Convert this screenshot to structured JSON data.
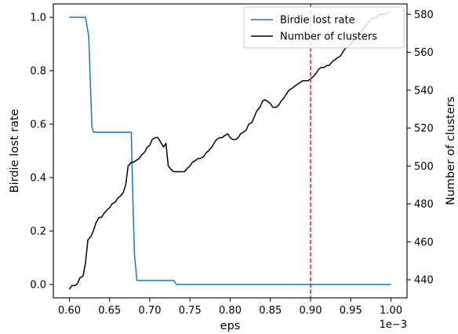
{
  "chart_data": {
    "type": "line",
    "xlabel": "eps",
    "x_offset_label": "1e−3",
    "ylabel_left": "Birdie lost rate",
    "ylabel_right": "Number of clusters",
    "xlim": [
      0.58,
      1.02
    ],
    "ylim_left": [
      -0.05,
      1.05
    ],
    "ylim_right": [
      430.5,
      585.5
    ],
    "xticks": [
      0.6,
      0.65,
      0.7,
      0.75,
      0.8,
      0.85,
      0.9,
      0.95,
      1.0
    ],
    "xtick_labels": [
      "0.60",
      "0.65",
      "0.70",
      "0.75",
      "0.80",
      "0.85",
      "0.90",
      "0.95",
      "1.00"
    ],
    "yticks_left": [
      0.0,
      0.2,
      0.4,
      0.6,
      0.8,
      1.0
    ],
    "ytick_labels_left": [
      "0.0",
      "0.2",
      "0.4",
      "0.6",
      "0.8",
      "1.0"
    ],
    "yticks_right": [
      440,
      460,
      480,
      500,
      520,
      540,
      560,
      580
    ],
    "ytick_labels_right": [
      "440",
      "460",
      "480",
      "500",
      "520",
      "540",
      "560",
      "580"
    ],
    "legend_position": "top-right",
    "vline": {
      "x": 0.9,
      "color": "#d62728",
      "style": "dashed"
    },
    "series": [
      {
        "name": "Birdie lost rate",
        "axis": "left",
        "color": "#1f77b4",
        "x": [
          0.6,
          0.605,
          0.61,
          0.615,
          0.62,
          0.624,
          0.628,
          0.63,
          0.64,
          0.65,
          0.66,
          0.67,
          0.677,
          0.679,
          0.681,
          0.684,
          0.69,
          0.7,
          0.71,
          0.72,
          0.73,
          0.733,
          0.74,
          0.76,
          0.8,
          0.85,
          0.9,
          0.95,
          1.0
        ],
        "y": [
          1.0,
          1.0,
          1.0,
          1.0,
          1.0,
          0.93,
          0.59,
          0.57,
          0.57,
          0.57,
          0.57,
          0.57,
          0.57,
          0.31,
          0.11,
          0.015,
          0.015,
          0.015,
          0.015,
          0.015,
          0.015,
          0.0,
          0.0,
          0.0,
          0.0,
          0.0,
          0.0,
          0.0,
          0.0
        ]
      },
      {
        "name": "Number of clusters",
        "axis": "right",
        "color": "#000000",
        "x": [
          0.6,
          0.603,
          0.607,
          0.61,
          0.613,
          0.617,
          0.62,
          0.623,
          0.627,
          0.63,
          0.633,
          0.637,
          0.64,
          0.643,
          0.647,
          0.65,
          0.653,
          0.657,
          0.66,
          0.663,
          0.667,
          0.67,
          0.673,
          0.677,
          0.68,
          0.683,
          0.687,
          0.69,
          0.693,
          0.697,
          0.7,
          0.703,
          0.707,
          0.71,
          0.713,
          0.717,
          0.72,
          0.723,
          0.727,
          0.73,
          0.733,
          0.737,
          0.74,
          0.743,
          0.747,
          0.75,
          0.753,
          0.757,
          0.76,
          0.763,
          0.767,
          0.77,
          0.773,
          0.777,
          0.78,
          0.783,
          0.787,
          0.79,
          0.793,
          0.797,
          0.8,
          0.803,
          0.807,
          0.81,
          0.813,
          0.817,
          0.82,
          0.823,
          0.827,
          0.83,
          0.833,
          0.837,
          0.84,
          0.843,
          0.847,
          0.85,
          0.853,
          0.857,
          0.86,
          0.863,
          0.867,
          0.87,
          0.873,
          0.877,
          0.88,
          0.883,
          0.887,
          0.89,
          0.893,
          0.897,
          0.9,
          0.903,
          0.907,
          0.91,
          0.913,
          0.917,
          0.92,
          0.923,
          0.927,
          0.93,
          0.933,
          0.937,
          0.94,
          0.943,
          0.947,
          0.95,
          0.953,
          0.957,
          0.96,
          0.963,
          0.967,
          0.97,
          0.973,
          0.977,
          0.98,
          0.983,
          0.987,
          0.99,
          0.993,
          0.997,
          1.0
        ],
        "y": [
          435,
          437,
          437,
          438,
          441,
          442,
          449,
          461,
          463,
          466,
          470,
          473,
          473,
          475,
          477,
          478,
          480,
          481,
          483,
          484,
          486,
          490,
          500,
          502,
          502,
          503,
          504,
          506,
          507,
          510,
          511,
          514,
          515,
          515,
          513,
          510,
          512,
          500,
          498,
          497,
          497,
          497,
          497,
          497,
          499,
          500,
          502,
          503,
          504,
          504,
          505,
          507,
          508,
          510,
          512,
          514,
          515,
          515,
          516,
          517,
          515,
          514,
          514,
          515,
          517,
          518,
          519,
          522,
          523,
          526,
          529,
          531,
          534,
          535,
          534,
          533,
          531,
          531,
          532,
          534,
          536,
          538,
          540,
          541,
          542,
          543,
          544,
          545,
          545,
          545,
          546,
          547,
          549,
          551,
          552,
          552,
          553,
          553,
          555,
          556,
          557,
          558,
          560,
          562,
          563,
          564,
          566,
          568,
          570,
          571,
          573,
          575,
          576,
          578,
          578,
          579,
          580,
          580,
          580,
          581,
          582
        ]
      }
    ]
  }
}
